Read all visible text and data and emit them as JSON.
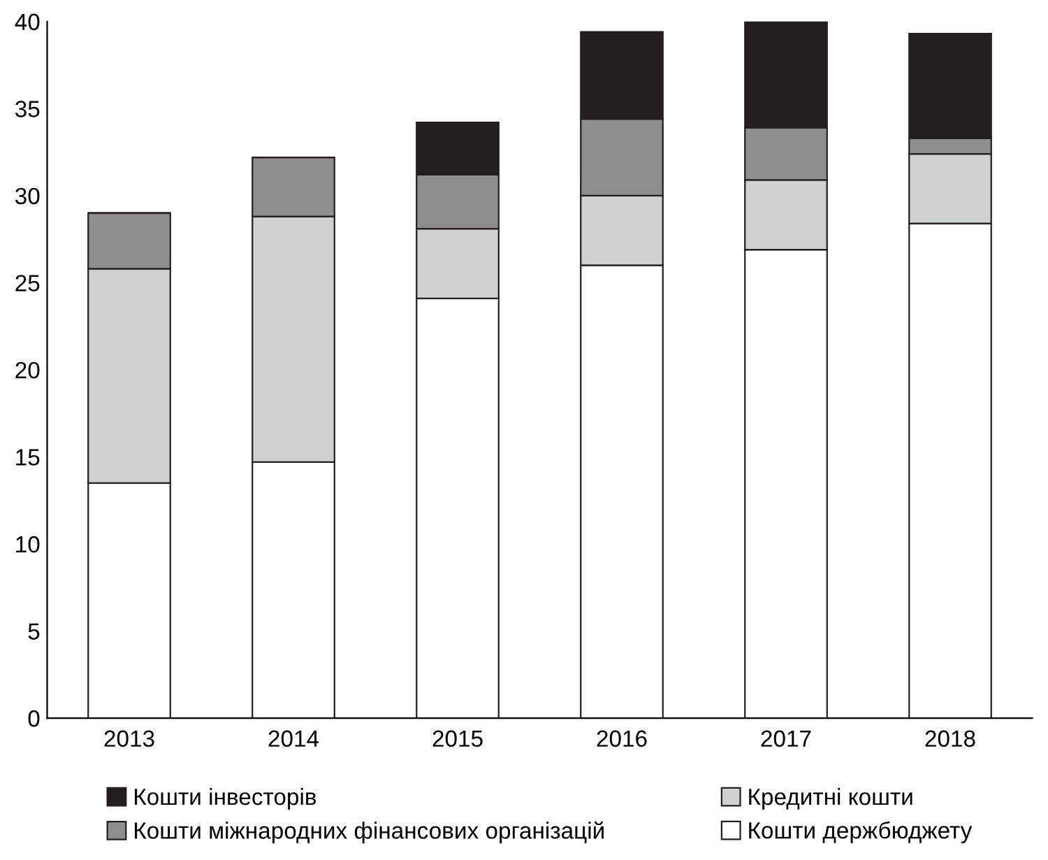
{
  "chart_data": {
    "type": "bar",
    "stacked": true,
    "categories": [
      "2013",
      "2014",
      "2015",
      "2016",
      "2017",
      "2018"
    ],
    "series": [
      {
        "name": "Кошти держбюджету",
        "color": "#ffffff",
        "values": [
          13.5,
          14.7,
          24.1,
          26.0,
          26.9,
          28.4
        ]
      },
      {
        "name": "Кредитні кошти",
        "color": "#cfd0d2",
        "values": [
          12.3,
          14.1,
          4.0,
          4.0,
          4.0,
          4.0
        ]
      },
      {
        "name": "Кошти міжнародних фінансових організацій",
        "color": "#8e8e8e",
        "values": [
          3.2,
          3.4,
          3.1,
          4.4,
          3.0,
          0.9
        ]
      },
      {
        "name": "Кошти інвесторів",
        "color": "#231f20",
        "values": [
          0,
          0,
          3.0,
          5.0,
          6.1,
          6.0
        ]
      }
    ],
    "ylim": [
      0,
      40
    ],
    "yticks": [
      0,
      5,
      10,
      15,
      20,
      25,
      30,
      35,
      40
    ],
    "grid": false,
    "legend": "bottom"
  }
}
